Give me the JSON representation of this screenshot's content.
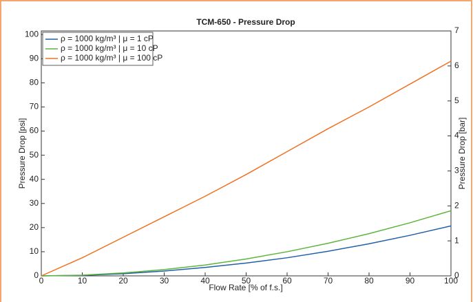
{
  "chart_data": {
    "type": "line",
    "title": "TCM-650 - Pressure Drop",
    "x_label": "Flow Rate [% of f.s.]",
    "y_label": "Pressure Drop [psi]",
    "y2_label": "Pressure Drop [bar]",
    "x": [
      0,
      10,
      20,
      30,
      40,
      50,
      60,
      70,
      80,
      90,
      100
    ],
    "series": [
      {
        "name": "ρ = 1000 kg/m³ | μ = 1 cP",
        "color": "#1f5fa8",
        "values": [
          0,
          0.2,
          0.9,
          2,
          3.5,
          5.3,
          7.5,
          10.2,
          13.3,
          16.8,
          20.7
        ]
      },
      {
        "name": "ρ = 1000 kg/m³ | μ = 10 cP",
        "color": "#5cb43c",
        "values": [
          0,
          0.3,
          1.2,
          2.6,
          4.5,
          7,
          10,
          13.5,
          17.5,
          22,
          27
        ]
      },
      {
        "name": "ρ = 1000 kg/m³ | μ = 100 cP",
        "color": "#f07020",
        "values": [
          0,
          7.5,
          16,
          24.5,
          33,
          42,
          51.5,
          61,
          70,
          79.5,
          89
        ]
      }
    ],
    "xlim": [
      0,
      100
    ],
    "xticks": [
      0,
      10,
      20,
      30,
      40,
      50,
      60,
      70,
      80,
      90,
      100
    ],
    "ylim": [
      0,
      101.5
    ],
    "yticks": [
      0,
      10,
      20,
      30,
      40,
      50,
      60,
      70,
      80,
      90,
      100
    ],
    "y2lim": [
      0,
      7
    ],
    "y2ticks": [
      0,
      1,
      2,
      3,
      4,
      5,
      6,
      7
    ],
    "grid": false,
    "legend": "upper-left"
  }
}
